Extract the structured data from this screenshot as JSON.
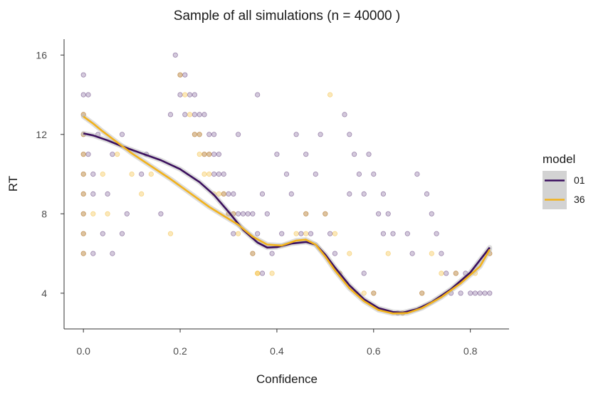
{
  "chart_data": {
    "type": "scatter",
    "title": "Sample of all simulations (n = 40000 )",
    "xlabel": "Confidence",
    "ylabel": "RT",
    "xlim": [
      -0.04,
      0.88
    ],
    "ylim": [
      2.2,
      16.8
    ],
    "x_ticks": [
      0.0,
      0.2,
      0.4,
      0.6,
      0.8
    ],
    "x_tick_labels": [
      "0.0",
      "0.2",
      "0.4",
      "0.6",
      "0.8"
    ],
    "y_ticks": [
      4,
      8,
      12,
      16
    ],
    "y_tick_labels": [
      "4",
      "8",
      "12",
      "16"
    ],
    "grid": false,
    "legend": {
      "title": "model",
      "position": "right"
    },
    "series": [
      {
        "name": "01",
        "color": "#3b0f5e",
        "points": [
          [
            0.0,
            6
          ],
          [
            0.0,
            7
          ],
          [
            0.0,
            8
          ],
          [
            0.0,
            9
          ],
          [
            0.0,
            10
          ],
          [
            0.0,
            11
          ],
          [
            0.0,
            12
          ],
          [
            0.0,
            13
          ],
          [
            0.0,
            14
          ],
          [
            0.0,
            15
          ],
          [
            0.01,
            11
          ],
          [
            0.01,
            14
          ],
          [
            0.02,
            6
          ],
          [
            0.02,
            9
          ],
          [
            0.02,
            10
          ],
          [
            0.03,
            12
          ],
          [
            0.04,
            7
          ],
          [
            0.05,
            9
          ],
          [
            0.06,
            6
          ],
          [
            0.06,
            11
          ],
          [
            0.08,
            7
          ],
          [
            0.08,
            12
          ],
          [
            0.09,
            8
          ],
          [
            0.12,
            10
          ],
          [
            0.13,
            11
          ],
          [
            0.16,
            8
          ],
          [
            0.18,
            13
          ],
          [
            0.19,
            16
          ],
          [
            0.2,
            15
          ],
          [
            0.2,
            14
          ],
          [
            0.21,
            15
          ],
          [
            0.21,
            13
          ],
          [
            0.22,
            14
          ],
          [
            0.23,
            14
          ],
          [
            0.23,
            13
          ],
          [
            0.23,
            12
          ],
          [
            0.24,
            13
          ],
          [
            0.24,
            12
          ],
          [
            0.25,
            11
          ],
          [
            0.25,
            13
          ],
          [
            0.26,
            12
          ],
          [
            0.26,
            11
          ],
          [
            0.27,
            10
          ],
          [
            0.27,
            12
          ],
          [
            0.27,
            11
          ],
          [
            0.28,
            10
          ],
          [
            0.28,
            11
          ],
          [
            0.29,
            9
          ],
          [
            0.29,
            10
          ],
          [
            0.3,
            9
          ],
          [
            0.3,
            8
          ],
          [
            0.31,
            9
          ],
          [
            0.31,
            7
          ],
          [
            0.31,
            8
          ],
          [
            0.32,
            12
          ],
          [
            0.32,
            8
          ],
          [
            0.33,
            8
          ],
          [
            0.34,
            8
          ],
          [
            0.35,
            8
          ],
          [
            0.35,
            6
          ],
          [
            0.36,
            14
          ],
          [
            0.36,
            7
          ],
          [
            0.37,
            9
          ],
          [
            0.37,
            5
          ],
          [
            0.38,
            8
          ],
          [
            0.39,
            6
          ],
          [
            0.4,
            11
          ],
          [
            0.41,
            7
          ],
          [
            0.42,
            10
          ],
          [
            0.43,
            9
          ],
          [
            0.44,
            12
          ],
          [
            0.45,
            7
          ],
          [
            0.46,
            8
          ],
          [
            0.46,
            11
          ],
          [
            0.47,
            7
          ],
          [
            0.48,
            10
          ],
          [
            0.49,
            12
          ],
          [
            0.5,
            8
          ],
          [
            0.51,
            7
          ],
          [
            0.52,
            6
          ],
          [
            0.53,
            5
          ],
          [
            0.54,
            13
          ],
          [
            0.55,
            12
          ],
          [
            0.55,
            9
          ],
          [
            0.56,
            11
          ],
          [
            0.57,
            10
          ],
          [
            0.58,
            9
          ],
          [
            0.58,
            5
          ],
          [
            0.59,
            11
          ],
          [
            0.6,
            10
          ],
          [
            0.6,
            4
          ],
          [
            0.61,
            8
          ],
          [
            0.62,
            9
          ],
          [
            0.62,
            7
          ],
          [
            0.63,
            8
          ],
          [
            0.64,
            7
          ],
          [
            0.65,
            3
          ],
          [
            0.66,
            3
          ],
          [
            0.67,
            7
          ],
          [
            0.68,
            6
          ],
          [
            0.69,
            10
          ],
          [
            0.7,
            4
          ],
          [
            0.71,
            9
          ],
          [
            0.72,
            8
          ],
          [
            0.73,
            7
          ],
          [
            0.74,
            6
          ],
          [
            0.75,
            5
          ],
          [
            0.76,
            4
          ],
          [
            0.77,
            5
          ],
          [
            0.78,
            4
          ],
          [
            0.79,
            5
          ],
          [
            0.8,
            4
          ],
          [
            0.81,
            4
          ],
          [
            0.82,
            4
          ],
          [
            0.83,
            4
          ],
          [
            0.84,
            4
          ],
          [
            0.84,
            6
          ]
        ],
        "trend": [
          [
            0.0,
            12.05
          ],
          [
            0.02,
            11.95
          ],
          [
            0.05,
            11.7
          ],
          [
            0.08,
            11.4
          ],
          [
            0.12,
            11.05
          ],
          [
            0.16,
            10.7
          ],
          [
            0.2,
            10.25
          ],
          [
            0.24,
            9.6
          ],
          [
            0.27,
            8.95
          ],
          [
            0.3,
            8.1
          ],
          [
            0.33,
            7.2
          ],
          [
            0.36,
            6.55
          ],
          [
            0.38,
            6.3
          ],
          [
            0.4,
            6.32
          ],
          [
            0.43,
            6.5
          ],
          [
            0.46,
            6.58
          ],
          [
            0.48,
            6.45
          ],
          [
            0.5,
            5.95
          ],
          [
            0.52,
            5.3
          ],
          [
            0.55,
            4.4
          ],
          [
            0.58,
            3.7
          ],
          [
            0.61,
            3.25
          ],
          [
            0.64,
            3.05
          ],
          [
            0.66,
            3.02
          ],
          [
            0.69,
            3.2
          ],
          [
            0.72,
            3.55
          ],
          [
            0.76,
            4.2
          ],
          [
            0.8,
            5.05
          ],
          [
            0.84,
            6.3
          ]
        ]
      },
      {
        "name": "36",
        "color": "#f2b21b",
        "points": [
          [
            0.0,
            6
          ],
          [
            0.0,
            7
          ],
          [
            0.0,
            8
          ],
          [
            0.0,
            9
          ],
          [
            0.0,
            10
          ],
          [
            0.0,
            11
          ],
          [
            0.0,
            12
          ],
          [
            0.0,
            13
          ],
          [
            0.02,
            8
          ],
          [
            0.04,
            10
          ],
          [
            0.05,
            8
          ],
          [
            0.07,
            11
          ],
          [
            0.1,
            10
          ],
          [
            0.12,
            9
          ],
          [
            0.14,
            10
          ],
          [
            0.18,
            7
          ],
          [
            0.2,
            15
          ],
          [
            0.21,
            14
          ],
          [
            0.22,
            13
          ],
          [
            0.23,
            12
          ],
          [
            0.24,
            12
          ],
          [
            0.24,
            11
          ],
          [
            0.25,
            11
          ],
          [
            0.25,
            10
          ],
          [
            0.26,
            11
          ],
          [
            0.26,
            10
          ],
          [
            0.27,
            9
          ],
          [
            0.28,
            9
          ],
          [
            0.29,
            9
          ],
          [
            0.3,
            8
          ],
          [
            0.31,
            8
          ],
          [
            0.32,
            7
          ],
          [
            0.35,
            6
          ],
          [
            0.36,
            5
          ],
          [
            0.36,
            5
          ],
          [
            0.39,
            5
          ],
          [
            0.44,
            7
          ],
          [
            0.46,
            8
          ],
          [
            0.46,
            7
          ],
          [
            0.5,
            8
          ],
          [
            0.51,
            14
          ],
          [
            0.52,
            7
          ],
          [
            0.53,
            5
          ],
          [
            0.55,
            6
          ],
          [
            0.58,
            4
          ],
          [
            0.6,
            4
          ],
          [
            0.63,
            6
          ],
          [
            0.66,
            3
          ],
          [
            0.66,
            3
          ],
          [
            0.7,
            4
          ],
          [
            0.72,
            6
          ],
          [
            0.74,
            5
          ],
          [
            0.77,
            5
          ],
          [
            0.81,
            5
          ],
          [
            0.84,
            6
          ]
        ],
        "trend": [
          [
            0.0,
            12.9
          ],
          [
            0.02,
            12.55
          ],
          [
            0.04,
            12.15
          ],
          [
            0.07,
            11.6
          ],
          [
            0.1,
            11.05
          ],
          [
            0.14,
            10.4
          ],
          [
            0.18,
            9.75
          ],
          [
            0.22,
            9.05
          ],
          [
            0.26,
            8.35
          ],
          [
            0.29,
            7.9
          ],
          [
            0.32,
            7.45
          ],
          [
            0.35,
            6.85
          ],
          [
            0.38,
            6.45
          ],
          [
            0.41,
            6.4
          ],
          [
            0.44,
            6.65
          ],
          [
            0.46,
            6.7
          ],
          [
            0.48,
            6.45
          ],
          [
            0.5,
            5.85
          ],
          [
            0.52,
            5.15
          ],
          [
            0.55,
            4.25
          ],
          [
            0.58,
            3.6
          ],
          [
            0.61,
            3.15
          ],
          [
            0.64,
            2.98
          ],
          [
            0.67,
            3.0
          ],
          [
            0.7,
            3.25
          ],
          [
            0.74,
            3.8
          ],
          [
            0.78,
            4.5
          ],
          [
            0.82,
            5.35
          ],
          [
            0.84,
            6.2
          ]
        ]
      }
    ]
  }
}
